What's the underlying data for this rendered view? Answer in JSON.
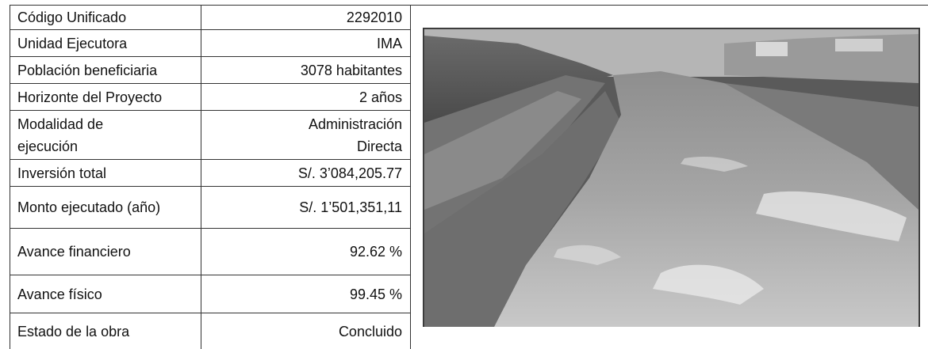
{
  "table": {
    "rows": [
      {
        "label": [
          "Código Unificado"
        ],
        "value": [
          "2292010"
        ]
      },
      {
        "label": [
          "Unidad Ejecutora"
        ],
        "value": [
          "IMA"
        ]
      },
      {
        "label": [
          "Población beneficiaria"
        ],
        "value": [
          "3078 habitantes"
        ]
      },
      {
        "label": [
          "Horizonte del Proyecto"
        ],
        "value": [
          "2 años"
        ]
      },
      {
        "label": [
          "Modalidad de",
          "ejecución"
        ],
        "value": [
          "Administración",
          "Directa"
        ]
      },
      {
        "label": [
          "Inversión total"
        ],
        "value": [
          "S/. 3’084,205.77"
        ]
      },
      {
        "label": [
          "Monto ejecutado (año)"
        ],
        "value": [
          "S/. 1’501,351,11"
        ]
      },
      {
        "label": [
          "Avance financiero"
        ],
        "value": [
          "92.62 %"
        ]
      },
      {
        "label": [
          "Avance físico"
        ],
        "value": [
          "99.45 %"
        ]
      },
      {
        "label": [
          "Estado de la obra"
        ],
        "value": [
          "Concluido"
        ]
      }
    ]
  }
}
